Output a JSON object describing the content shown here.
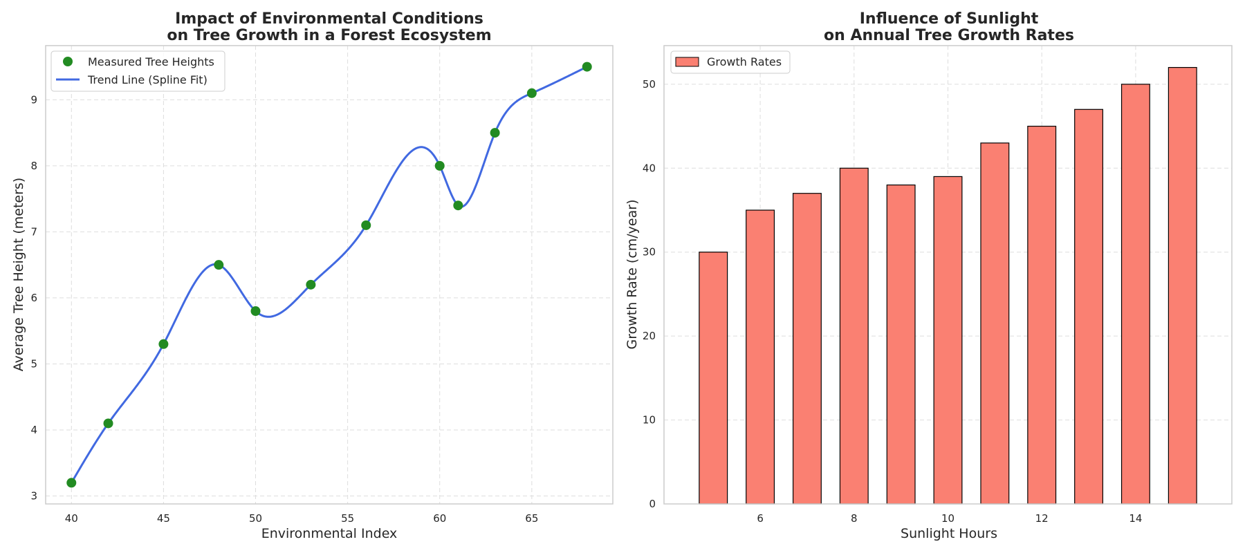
{
  "chart_data": [
    {
      "type": "scatter",
      "title": [
        "Impact of Environmental Conditions",
        "on Tree Growth in a Forest Ecosystem"
      ],
      "xlabel": "Environmental Index",
      "ylabel": "Average Tree Height (meters)",
      "x": [
        40,
        42,
        45,
        48,
        50,
        53,
        56,
        60,
        61,
        63,
        65,
        68
      ],
      "y": [
        3.2,
        4.1,
        5.3,
        6.5,
        5.8,
        6.2,
        7.1,
        8.0,
        7.4,
        8.5,
        9.1,
        9.5
      ],
      "xlim": [
        38.6,
        69.4
      ],
      "ylim": [
        2.88,
        9.82
      ],
      "xticks": [
        40,
        45,
        50,
        55,
        60,
        65
      ],
      "yticks": [
        3,
        4,
        5,
        6,
        7,
        8,
        9
      ],
      "grid": true,
      "legend_position": "top-left",
      "series": [
        {
          "name": "Measured Tree Heights",
          "kind": "points",
          "color": "#228b22"
        },
        {
          "name": "Trend Line (Spline Fit)",
          "kind": "line",
          "color": "#4169e1"
        }
      ]
    },
    {
      "type": "bar",
      "title": [
        "Influence of Sunlight",
        "on Annual Tree Growth Rates"
      ],
      "xlabel": "Sunlight Hours",
      "ylabel": "Growth Rate (cm/year)",
      "categories": [
        5,
        6,
        7,
        8,
        9,
        10,
        11,
        12,
        13,
        14,
        15
      ],
      "values": [
        30,
        35,
        37,
        40,
        38,
        39,
        43,
        45,
        47,
        50,
        52
      ],
      "bar_width": 0.6,
      "xlim": [
        3.95,
        16.05
      ],
      "ylim": [
        0,
        54.6
      ],
      "xticks": [
        6,
        8,
        10,
        12,
        14
      ],
      "yticks": [
        0,
        10,
        20,
        30,
        40,
        50
      ],
      "grid": true,
      "legend_position": "top-left",
      "series": [
        {
          "name": "Growth Rates",
          "color": "#fa8072",
          "edge_color": "#000000"
        }
      ]
    }
  ]
}
